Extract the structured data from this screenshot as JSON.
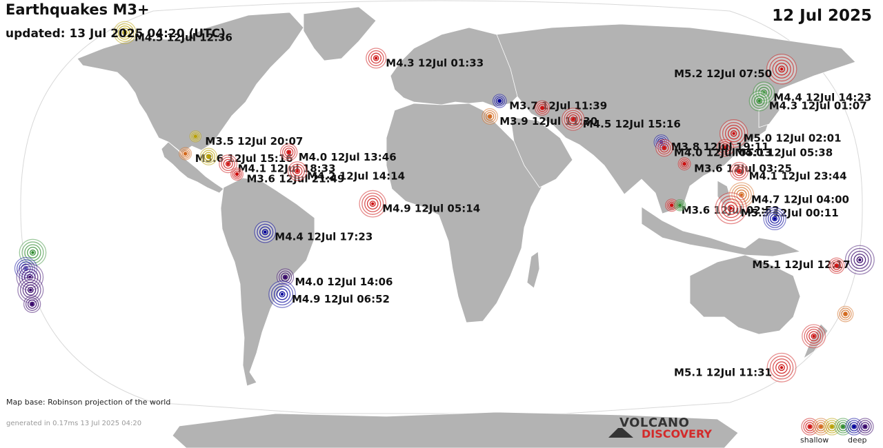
{
  "header": {
    "title": "Earthquakes M3+",
    "updated": "updated: 13 Jul 2025 04:20 (UTC)",
    "date": "12 Jul 2025"
  },
  "footer": {
    "map_base": "Map base: Robinson projection of the world",
    "generated": "generated in 0.17ms 13 Jul 2025 04:20",
    "logo_line1": "VOLCANO",
    "logo_line2": "DISCOVERY",
    "legend_shallow": "shallow",
    "legend_deep": "deep"
  },
  "colors": {
    "ocean": "#ffffff",
    "land": "#b3b3b3",
    "shallow": "#cc1111",
    "mid_shallow": "#d2691e",
    "intermediate": "#b8a000",
    "mid_deep": "#2e8b2e",
    "deep": "#000099",
    "very_deep": "#330066"
  },
  "legend_colors": [
    "#cc1111",
    "#d2691e",
    "#b8a000",
    "#2e8b2e",
    "#000099",
    "#330066"
  ],
  "earthquakes": [
    {
      "label": "M4.5 12Jul 12:36",
      "lat": 61.5,
      "lon": -150.5,
      "mag": 4.5,
      "color": "intermediate"
    },
    {
      "label": "M4.3 12Jul 01:33",
      "lat": 52.0,
      "lon": -30.0,
      "mag": 4.3,
      "color": "shallow"
    },
    {
      "label": "M3.7 12Jul 11:39",
      "lat": 36.5,
      "lon": 25.5,
      "mag": 3.7,
      "color": "deep"
    },
    {
      "label": "M3.9 12Jul 11:30",
      "lat": 31.0,
      "lon": 21.0,
      "mag": 3.9,
      "color": "mid_shallow"
    },
    {
      "label": "M4.5 12Jul 15:16",
      "lat": 30.0,
      "lon": 57.0,
      "mag": 4.5,
      "color": "shallow"
    },
    {
      "label": "",
      "lat": 34.0,
      "lon": 44.0,
      "mag": 3.8,
      "color": "shallow"
    },
    {
      "label": "M5.2 12Jul 07:50",
      "lat": 48.0,
      "lon": 154.0,
      "mag": 5.2,
      "color": "shallow"
    },
    {
      "label": "M4.4 12Jul 14:23",
      "lat": 39.5,
      "lon": 142.5,
      "mag": 4.4,
      "color": "mid_deep"
    },
    {
      "label": "M4.3 12Jul 01:07",
      "lat": 36.5,
      "lon": 139.5,
      "mag": 4.3,
      "color": "mid_deep"
    },
    {
      "label": "M5.0 12Jul 02:01",
      "lat": 25.0,
      "lon": 125.5,
      "mag": 5.0,
      "color": "shallow"
    },
    {
      "label": "M4.0 12Jul 05:38",
      "lat": 20.0,
      "lon": 121.0,
      "mag": 4.0,
      "color": "shallow"
    },
    {
      "label": "M3.8 12Jul 19:11",
      "lat": 22.0,
      "lon": 94.0,
      "mag": 3.8,
      "color": "deep"
    },
    {
      "label": "M4.0 12Jul 05:13",
      "lat": 20.0,
      "lon": 95.0,
      "mag": 4.0,
      "color": "shallow"
    },
    {
      "label": "M3.6 12Jul 03:25",
      "lat": 14.5,
      "lon": 103.0,
      "mag": 3.6,
      "color": "shallow"
    },
    {
      "label": "M4.1 12Jul 23:44",
      "lat": 12.0,
      "lon": 126.0,
      "mag": 4.1,
      "color": "shallow"
    },
    {
      "label": "M4.7 12Jul 04:00",
      "lat": 4.0,
      "lon": 126.5,
      "mag": 4.7,
      "color": "mid_shallow"
    },
    {
      "label": "M3.6 12Jul 02:52",
      "lat": 0.5,
      "lon": 97.0,
      "mag": 3.6,
      "color": "shallow"
    },
    {
      "label": "",
      "lat": 0.5,
      "lon": 100.5,
      "mag": 3.5,
      "color": "mid_deep"
    },
    {
      "label": "M5.3 12Jul 00:11",
      "lat": -0.5,
      "lon": 122.0,
      "mag": 5.3,
      "color": "shallow"
    },
    {
      "label": "",
      "lat": -4.0,
      "lon": 140.5,
      "mag": 4.5,
      "color": "deep"
    },
    {
      "label": "M3.5 12Jul 20:07",
      "lat": 24.0,
      "lon": -105.5,
      "mag": 3.5,
      "color": "intermediate"
    },
    {
      "label": "M3.6 12Jul 15:16",
      "lat": 18.0,
      "lon": -109.0,
      "mag": 3.6,
      "color": "mid_shallow"
    },
    {
      "label": "",
      "lat": 17.0,
      "lon": -99.0,
      "mag": 4.0,
      "color": "intermediate"
    },
    {
      "label": "M4.1 12Jul 18:33",
      "lat": 14.5,
      "lon": -90.5,
      "mag": 4.1,
      "color": "shallow"
    },
    {
      "label": "M3.6 12Jul 21:49",
      "lat": 11.0,
      "lon": -86.5,
      "mag": 3.6,
      "color": "shallow"
    },
    {
      "label": "M4.0 12Jul 13:46",
      "lat": 18.5,
      "lon": -65.0,
      "mag": 4.0,
      "color": "shallow"
    },
    {
      "label": "M4.2 12Jul 14:14",
      "lat": 12.0,
      "lon": -61.0,
      "mag": 4.2,
      "color": "shallow"
    },
    {
      "label": "M4.9 12Jul 05:14",
      "lat": 1.0,
      "lon": -29.0,
      "mag": 4.9,
      "color": "shallow"
    },
    {
      "label": "M4.4 12Jul 17:23",
      "lat": -8.5,
      "lon": -74.5,
      "mag": 4.4,
      "color": "deep"
    },
    {
      "label": "M4.0 12Jul 14:06",
      "lat": -24.0,
      "lon": -67.0,
      "mag": 4.0,
      "color": "very_deep"
    },
    {
      "label": "M4.9 12Jul 06:52",
      "lat": -30.0,
      "lon": -69.0,
      "mag": 4.9,
      "color": "deep"
    },
    {
      "label": "M5.1 12Jul 12:17",
      "lat": -18.0,
      "lon": 178.0,
      "mag": 5.1,
      "color": "very_deep"
    },
    {
      "label": "",
      "lat": -20.0,
      "lon": 168.5,
      "mag": 3.9,
      "color": "shallow"
    },
    {
      "label": "",
      "lat": -15.5,
      "lon": -173.5,
      "mag": 4.9,
      "color": "mid_deep"
    },
    {
      "label": "",
      "lat": -21.0,
      "lon": -177.5,
      "mag": 4.5,
      "color": "deep"
    },
    {
      "label": "",
      "lat": -24.0,
      "lon": -176.5,
      "mag": 4.9,
      "color": "very_deep"
    },
    {
      "label": "",
      "lat": -28.5,
      "lon": -177.5,
      "mag": 4.8,
      "color": "very_deep"
    },
    {
      "label": "",
      "lat": -33.5,
      "lon": -178.5,
      "mag": 4.0,
      "color": "very_deep"
    },
    {
      "label": "",
      "lat": -37.0,
      "lon": 177.5,
      "mag": 3.9,
      "color": "mid_shallow"
    },
    {
      "label": "",
      "lat": -45.0,
      "lon": 167.0,
      "mag": 4.6,
      "color": "shallow"
    },
    {
      "label": "M5.1 12Jul 11:31",
      "lat": -56.5,
      "lon": 158.5,
      "mag": 5.1,
      "color": "shallow"
    }
  ]
}
